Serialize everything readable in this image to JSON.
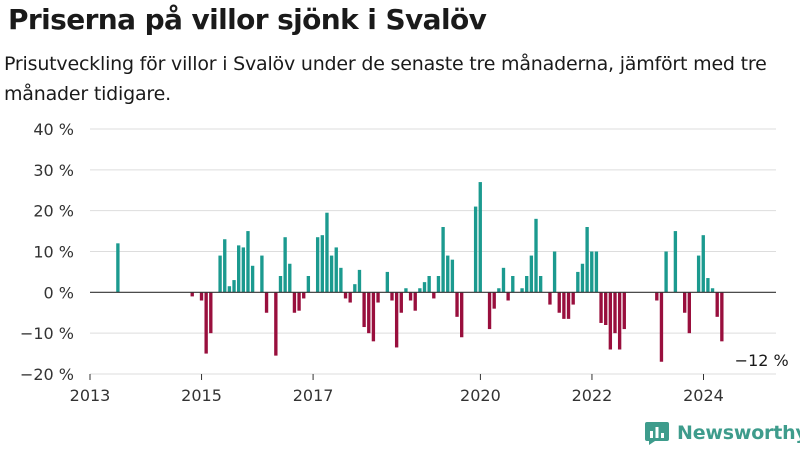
{
  "title": "Priserna på villor sjönk i Svalöv",
  "subtitle": "Prisutveckling för villor i Svalöv under de senaste tre månaderna, jämfört med tre månader tidigare.",
  "brand": {
    "name": "Newsworthy",
    "logo_icon": "bar-chart-logo-icon"
  },
  "colors": {
    "positive": "#1b9a8f",
    "negative": "#990f3d",
    "brand": "#3e9c8c",
    "grid": "#dddddd"
  },
  "chart_data": {
    "type": "bar",
    "ylim": [
      -20,
      40
    ],
    "xlim": [
      2013.0,
      2025.3
    ],
    "y_ticks": [
      {
        "value": 40,
        "label": "40 %"
      },
      {
        "value": 30,
        "label": "30 %"
      },
      {
        "value": 20,
        "label": "20 %"
      },
      {
        "value": 10,
        "label": "10 %"
      },
      {
        "value": 0,
        "label": "0 %"
      },
      {
        "value": -10,
        "label": "−10 %"
      },
      {
        "value": -20,
        "label": "−20 %"
      }
    ],
    "x_ticks": [
      {
        "value": 2013,
        "label": "2013"
      },
      {
        "value": 2015,
        "label": "2015"
      },
      {
        "value": 2017,
        "label": "2017"
      },
      {
        "value": 2020,
        "label": "2020"
      },
      {
        "value": 2022,
        "label": "2022"
      },
      {
        "value": 2024,
        "label": "2024"
      }
    ],
    "annotation": {
      "label": "−12 %",
      "x": 2025.08,
      "y": -12
    },
    "start": 2013.5,
    "step": 0.0833,
    "values": [
      12,
      0,
      0,
      0,
      0,
      0,
      0,
      0,
      0,
      0,
      0,
      0,
      0,
      0,
      0,
      0,
      -1,
      0,
      -2,
      -15,
      -10,
      0,
      9,
      13,
      1.5,
      3,
      11.5,
      11,
      15,
      6.5,
      0,
      9,
      -5,
      0,
      -15.5,
      4,
      13.5,
      7,
      -5,
      -4.5,
      -1.5,
      4,
      0,
      13.5,
      14,
      19.5,
      9,
      11,
      6,
      -1.5,
      -2.5,
      2,
      5.5,
      -8.5,
      -10,
      -12,
      -2.5,
      0,
      5,
      -2,
      -13.5,
      -5,
      1,
      -2,
      -4.5,
      1,
      2.5,
      4,
      -1.5,
      4,
      16,
      9,
      8,
      -6,
      -11,
      0,
      0,
      21,
      27,
      0,
      -9,
      -4,
      1,
      6,
      -2,
      4,
      0,
      1,
      4,
      9,
      18,
      4,
      0,
      -3,
      10,
      -5,
      -6.5,
      -6.5,
      -3,
      5,
      7,
      16,
      10,
      10,
      -7.5,
      -8,
      -14,
      -10,
      -14,
      -9,
      0,
      0,
      0,
      0,
      0,
      0,
      -2,
      -17,
      10,
      0,
      15,
      0,
      -5,
      -10,
      0,
      9,
      14,
      3.5,
      1,
      -6,
      -12
    ]
  }
}
